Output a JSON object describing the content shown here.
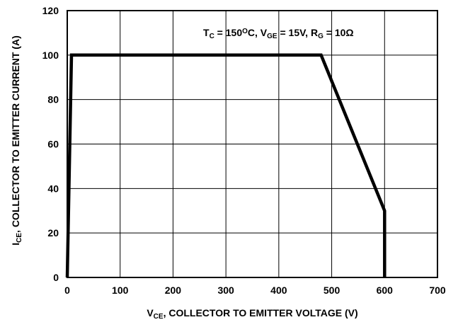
{
  "chart_data": {
    "type": "line",
    "title": "",
    "xlabel": {
      "main": "V",
      "sub": "CE",
      "rest": ", COLLECTOR TO EMITTER VOLTAGE (V)"
    },
    "ylabel": {
      "main": "I",
      "sub": "CE",
      "rest": ", COLLECTOR TO EMITTER CURRENT (A)"
    },
    "xlim": [
      0,
      700
    ],
    "ylim": [
      0,
      120
    ],
    "xticks": [
      "0",
      "100",
      "200",
      "300",
      "400",
      "500",
      "600",
      "700"
    ],
    "yticks": [
      "0",
      "20",
      "40",
      "60",
      "80",
      "100",
      "120"
    ],
    "grid": true,
    "annotation": {
      "parts": [
        {
          "t": "T",
          "sub": false
        },
        {
          "t": "C",
          "sub": true
        },
        {
          "t": " = 150",
          "sub": false
        },
        {
          "t": "O",
          "sup": true
        },
        {
          "t": "C, V",
          "sub": false
        },
        {
          "t": "GE",
          "sub": true
        },
        {
          "t": " = 15V, R",
          "sub": false
        },
        {
          "t": "G",
          "sub": true
        },
        {
          "t": " = 10Ω",
          "sub": false
        }
      ]
    },
    "series": [
      {
        "x": [
          0,
          8,
          480,
          600,
          600
        ],
        "y": [
          0,
          100,
          100,
          30,
          0
        ]
      }
    ]
  }
}
